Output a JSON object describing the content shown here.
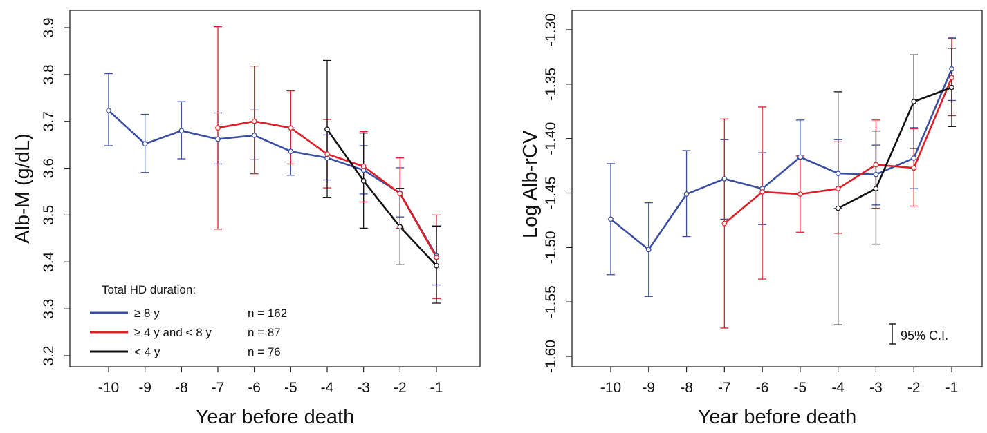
{
  "chart_data": [
    {
      "type": "line",
      "xlabel": "Year before death",
      "ylabel": "Alb-M (g/dL)",
      "x": [
        -10,
        -9,
        -8,
        -7,
        -6,
        -5,
        -4,
        -3,
        -2,
        -1
      ],
      "x_tick_labels": [
        "-10",
        "-9",
        "-8",
        "-7",
        "-6",
        "-5",
        "-4",
        "-3",
        "-2",
        "-1"
      ],
      "ylim": [
        3.2,
        3.9
      ],
      "y_ticks": [
        3.2,
        3.3,
        3.4,
        3.5,
        3.6,
        3.7,
        3.8,
        3.9
      ],
      "y_tick_labels": [
        "3.2",
        "3.3",
        "3.4",
        "3.5",
        "3.6",
        "3.7",
        "3.8",
        "3.9"
      ],
      "grid": false,
      "legend": {
        "title": "Total HD duration:",
        "placement": "bottom-left",
        "entries": [
          {
            "label": "≥ 8 y",
            "n": "n = 162",
            "color": "#3a4fa3"
          },
          {
            "label": "≥ 4 y and < 8 y",
            "n": "n =  87",
            "color": "#e01e26"
          },
          {
            "label": "< 4 y",
            "n": "n =  76",
            "color": "#111111"
          }
        ]
      },
      "series": [
        {
          "name": "≥ 8 y",
          "color": "#3a4fa3",
          "points": [
            {
              "x": -10,
              "y": 3.723,
              "lo": 3.648,
              "hi": 3.802
            },
            {
              "x": -9,
              "y": 3.652,
              "lo": 3.591,
              "hi": 3.715
            },
            {
              "x": -8,
              "y": 3.68,
              "lo": 3.62,
              "hi": 3.742
            },
            {
              "x": -7,
              "y": 3.662,
              "lo": 3.609,
              "hi": 3.718
            },
            {
              "x": -6,
              "y": 3.67,
              "lo": 3.618,
              "hi": 3.724
            },
            {
              "x": -5,
              "y": 3.636,
              "lo": 3.585,
              "hi": 3.686
            },
            {
              "x": -4,
              "y": 3.622,
              "lo": 3.575,
              "hi": 3.671
            },
            {
              "x": -3,
              "y": 3.596,
              "lo": 3.545,
              "hi": 3.648
            },
            {
              "x": -2,
              "y": 3.547,
              "lo": 3.496,
              "hi": 3.601
            },
            {
              "x": -1,
              "y": 3.413,
              "lo": 3.351,
              "hi": 3.477
            }
          ]
        },
        {
          "name": "≥ 4 y and < 8 y",
          "color": "#e01e26",
          "points": [
            {
              "x": -7,
              "y": 3.686,
              "lo": 3.47,
              "hi": 3.902
            },
            {
              "x": -6,
              "y": 3.7,
              "lo": 3.588,
              "hi": 3.818
            },
            {
              "x": -5,
              "y": 3.686,
              "lo": 3.609,
              "hi": 3.765
            },
            {
              "x": -4,
              "y": 3.63,
              "lo": 3.558,
              "hi": 3.704
            },
            {
              "x": -3,
              "y": 3.604,
              "lo": 3.528,
              "hi": 3.678
            },
            {
              "x": -2,
              "y": 3.546,
              "lo": 3.472,
              "hi": 3.622
            },
            {
              "x": -1,
              "y": 3.41,
              "lo": 3.322,
              "hi": 3.5
            }
          ]
        },
        {
          "name": "< 4 y",
          "color": "#111111",
          "points": [
            {
              "x": -4,
              "y": 3.683,
              "lo": 3.538,
              "hi": 3.83
            },
            {
              "x": -3,
              "y": 3.573,
              "lo": 3.472,
              "hi": 3.675
            },
            {
              "x": -2,
              "y": 3.475,
              "lo": 3.395,
              "hi": 3.557
            },
            {
              "x": -1,
              "y": 3.392,
              "lo": 3.312,
              "hi": 3.476
            }
          ]
        }
      ]
    },
    {
      "type": "line",
      "xlabel": "Year before death",
      "ylabel": "Log Alb-rCV",
      "x": [
        -10,
        -9,
        -8,
        -7,
        -6,
        -5,
        -4,
        -3,
        -2,
        -1
      ],
      "x_tick_labels": [
        "-10",
        "-9",
        "-8",
        "-7",
        "-6",
        "-5",
        "-4",
        "-3",
        "-2",
        "-1"
      ],
      "ylim": [
        -1.62,
        -1.29
      ],
      "y_ticks": [
        -1.6,
        -1.55,
        -1.5,
        -1.45,
        -1.4,
        -1.35,
        -1.3
      ],
      "y_tick_labels": [
        "-1.60",
        "-1.55",
        "-1.50",
        "-1.45",
        "-1.40",
        "-1.35",
        "-1.30"
      ],
      "grid": false,
      "annotation": "95% C.I.",
      "series": [
        {
          "name": "≥ 8 y",
          "color": "#3a4fa3",
          "points": [
            {
              "x": -10,
              "y": -1.474,
              "lo": -1.525,
              "hi": -1.423
            },
            {
              "x": -9,
              "y": -1.502,
              "lo": -1.545,
              "hi": -1.459
            },
            {
              "x": -8,
              "y": -1.451,
              "lo": -1.49,
              "hi": -1.411
            },
            {
              "x": -7,
              "y": -1.437,
              "lo": -1.474,
              "hi": -1.401
            },
            {
              "x": -6,
              "y": -1.446,
              "lo": -1.479,
              "hi": -1.413
            },
            {
              "x": -5,
              "y": -1.417,
              "lo": -1.45,
              "hi": -1.383
            },
            {
              "x": -4,
              "y": -1.432,
              "lo": -1.464,
              "hi": -1.401
            },
            {
              "x": -3,
              "y": -1.433,
              "lo": -1.461,
              "hi": -1.406
            },
            {
              "x": -2,
              "y": -1.418,
              "lo": -1.446,
              "hi": -1.39
            },
            {
              "x": -1,
              "y": -1.336,
              "lo": -1.365,
              "hi": -1.307
            }
          ]
        },
        {
          "name": "≥ 4 y and < 8 y",
          "color": "#e01e26",
          "points": [
            {
              "x": -7,
              "y": -1.478,
              "lo": -1.574,
              "hi": -1.382
            },
            {
              "x": -6,
              "y": -1.449,
              "lo": -1.529,
              "hi": -1.371
            },
            {
              "x": -5,
              "y": -1.451,
              "lo": -1.486,
              "hi": -1.416
            },
            {
              "x": -4,
              "y": -1.446,
              "lo": -1.487,
              "hi": -1.403
            },
            {
              "x": -3,
              "y": -1.424,
              "lo": -1.464,
              "hi": -1.383
            },
            {
              "x": -2,
              "y": -1.427,
              "lo": -1.462,
              "hi": -1.391
            },
            {
              "x": -1,
              "y": -1.344,
              "lo": -1.379,
              "hi": -1.308
            }
          ]
        },
        {
          "name": "< 4 y",
          "color": "#111111",
          "points": [
            {
              "x": -4,
              "y": -1.464,
              "lo": -1.571,
              "hi": -1.357
            },
            {
              "x": -3,
              "y": -1.446,
              "lo": -1.497,
              "hi": -1.393
            },
            {
              "x": -2,
              "y": -1.366,
              "lo": -1.409,
              "hi": -1.323
            },
            {
              "x": -1,
              "y": -1.353,
              "lo": -1.389,
              "hi": -1.317
            }
          ]
        }
      ]
    }
  ]
}
